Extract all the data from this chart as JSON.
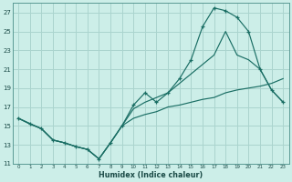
{
  "xlabel": "Humidex (Indice chaleur)",
  "bg_color": "#cceee8",
  "grid_color": "#aad4ce",
  "line_color": "#1a6e64",
  "xlim": [
    -0.5,
    23.5
  ],
  "ylim": [
    11,
    28
  ],
  "xticks": [
    0,
    1,
    2,
    3,
    4,
    5,
    6,
    7,
    8,
    9,
    10,
    11,
    12,
    13,
    14,
    15,
    16,
    17,
    18,
    19,
    20,
    21,
    22,
    23
  ],
  "yticks": [
    11,
    13,
    15,
    17,
    19,
    21,
    23,
    25,
    27
  ],
  "line1_x": [
    0,
    1,
    2,
    3,
    4,
    5,
    6,
    7,
    8,
    9,
    10,
    11,
    12,
    13,
    14,
    15,
    16,
    17,
    18,
    19,
    20,
    21,
    22,
    23
  ],
  "line1_y": [
    15.8,
    15.2,
    14.7,
    13.5,
    13.2,
    12.8,
    12.5,
    11.5,
    13.2,
    15.0,
    17.2,
    18.5,
    17.5,
    18.5,
    20.0,
    22.0,
    25.5,
    27.5,
    27.2,
    26.5,
    25.0,
    21.0,
    18.8,
    17.5
  ],
  "line2_x": [
    0,
    2,
    3,
    4,
    5,
    6,
    7,
    8,
    9,
    10,
    11,
    12,
    13,
    14,
    15,
    16,
    17,
    18,
    19,
    20,
    21,
    22,
    23
  ],
  "line2_y": [
    15.8,
    14.7,
    13.5,
    13.2,
    12.8,
    12.5,
    11.5,
    13.2,
    15.0,
    16.8,
    17.5,
    18.0,
    18.5,
    19.5,
    20.5,
    21.5,
    22.5,
    25.0,
    22.5,
    22.0,
    21.0,
    18.8,
    17.5
  ],
  "line3_x": [
    0,
    1,
    2,
    3,
    4,
    5,
    6,
    7,
    8,
    9,
    10,
    11,
    12,
    13,
    14,
    15,
    16,
    17,
    18,
    19,
    20,
    21,
    22,
    23
  ],
  "line3_y": [
    15.8,
    15.2,
    14.7,
    13.5,
    13.2,
    12.8,
    12.5,
    11.5,
    13.2,
    15.0,
    15.8,
    16.2,
    16.5,
    17.0,
    17.2,
    17.5,
    17.8,
    18.0,
    18.5,
    18.8,
    19.0,
    19.2,
    19.5,
    20.0
  ]
}
